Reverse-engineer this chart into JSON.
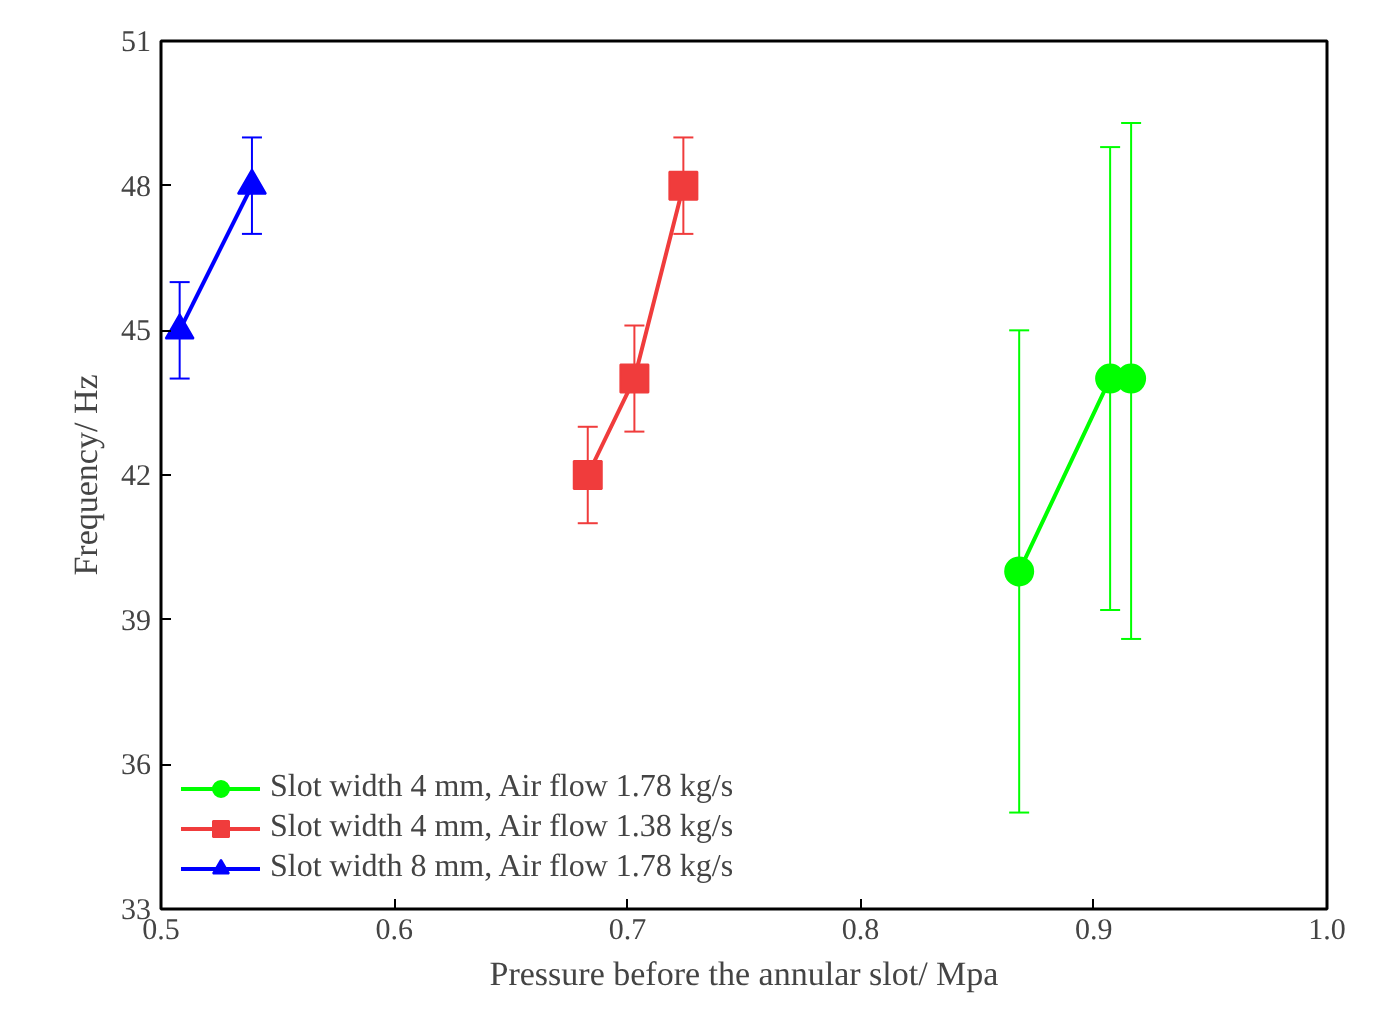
{
  "chart_data": {
    "type": "line",
    "xlabel": "Pressure before the annular slot/ Mpa",
    "ylabel": "Frequency/ Hz",
    "xlim": [
      0.5,
      1.0
    ],
    "xticks": [
      0.5,
      0.6,
      0.7,
      0.8,
      0.9,
      {
        "value": 1.0,
        "label": "1.0"
      }
    ],
    "ylim": [
      33,
      51
    ],
    "yticks": [
      33,
      36,
      39,
      42,
      45,
      48,
      51
    ],
    "grid": false,
    "legend": "bottom left",
    "line_style": "solid",
    "series": [
      {
        "name": "Slot width 4 mm, Air flow 1.78 kg/s",
        "color": "#00ff00",
        "marker": "circle",
        "x": [
          0.868,
          0.907,
          0.916
        ],
        "values": [
          40,
          44,
          44
        ],
        "errors": [
          [
            35,
            45
          ],
          [
            39.2,
            48.8
          ],
          [
            38.6,
            49.3
          ]
        ]
      },
      {
        "name": "Slot width 4 mm, Air flow 1.38 kg/s",
        "color": "#f03c3c",
        "marker": "square",
        "x": [
          0.683,
          0.703,
          0.724
        ],
        "values": [
          42,
          44,
          48
        ],
        "errors": [
          [
            41,
            43
          ],
          [
            42.9,
            45.1
          ],
          [
            47,
            49
          ]
        ]
      },
      {
        "name": "Slot width 8 mm, Air flow 1.78 kg/s",
        "color": "#0000ff",
        "marker": "triangle",
        "x": [
          0.508,
          0.539
        ],
        "values": [
          45,
          48
        ],
        "errors": [
          [
            44,
            46
          ],
          [
            47,
            49
          ]
        ]
      }
    ]
  }
}
